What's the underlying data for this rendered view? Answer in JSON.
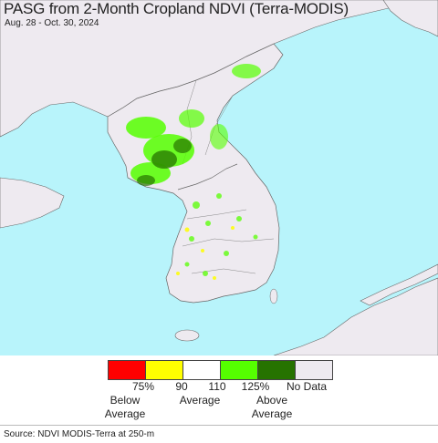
{
  "header": {
    "title": "PASG from 2-Month Cropland NDVI (Terra-MODIS)",
    "date_range": "Aug. 28 - Oct. 30, 2024"
  },
  "legend": {
    "swatches": [
      {
        "name": "below-75",
        "color": "#ff0000"
      },
      {
        "name": "75-90",
        "color": "#ffff00"
      },
      {
        "name": "90-110",
        "color": "#ffffff"
      },
      {
        "name": "110-125",
        "color": "#55ff00"
      },
      {
        "name": "above-125",
        "color": "#267300"
      },
      {
        "name": "no-data",
        "color": "#eeeaf0"
      }
    ],
    "ticks": [
      "75%",
      "90",
      "110",
      "125%"
    ],
    "below_label_1": "Below",
    "below_label_2": "Average",
    "average_label": "Average",
    "above_label_1": "Above",
    "above_label_2": "Average",
    "nodata_label": "No Data"
  },
  "colors": {
    "water": "#b8f4fb",
    "land_nodata": "#eeeaf0",
    "border": "#777777",
    "green_light": "#55ff00",
    "green_dark": "#267300"
  },
  "footer": {
    "source": "Source: NDVI MODIS-Terra at 250-m"
  }
}
